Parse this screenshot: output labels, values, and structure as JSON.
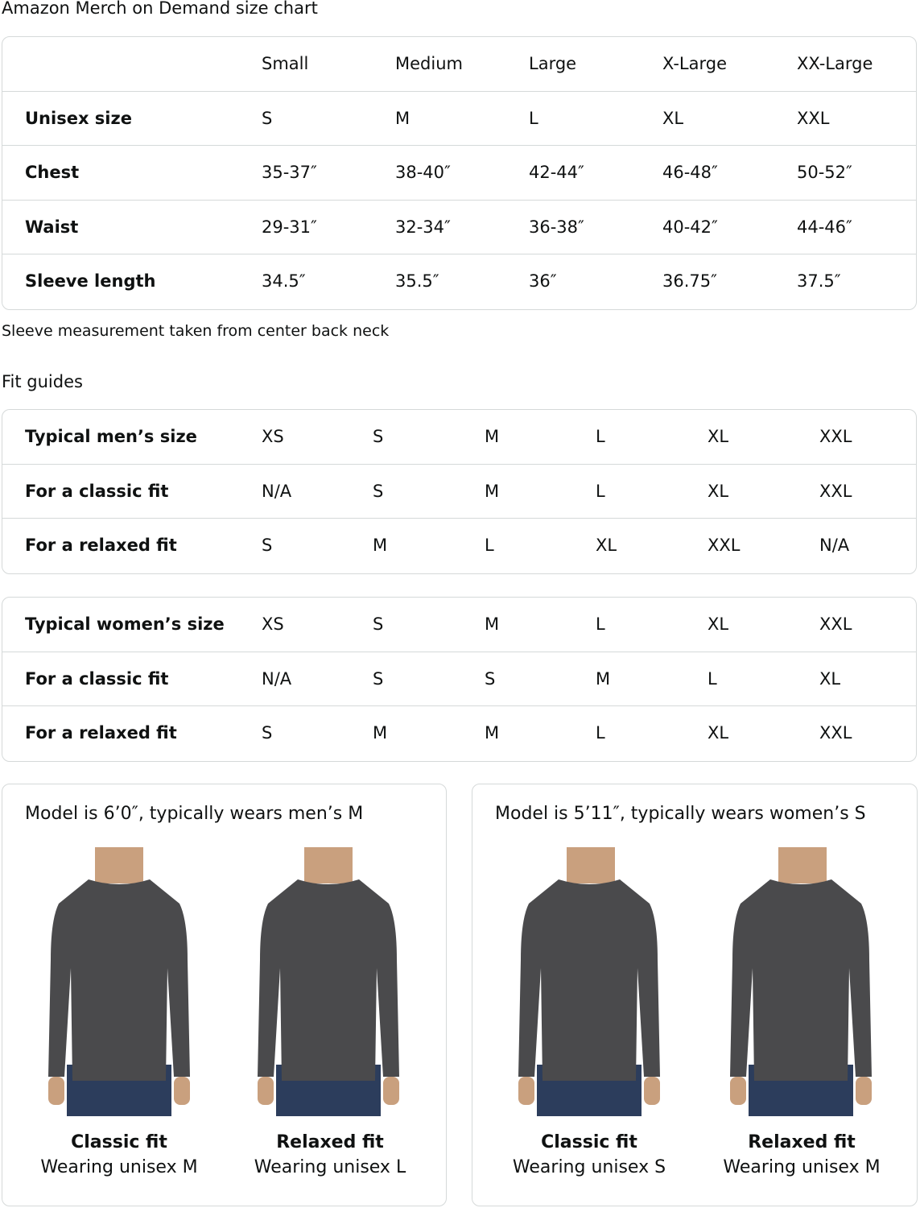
{
  "title": "Amazon Merch on Demand size chart",
  "size_chart": {
    "headers": [
      "",
      "Small",
      "Medium",
      "Large",
      "X-Large",
      "XX-Large"
    ],
    "rows": [
      [
        "Unisex size",
        "S",
        "M",
        "L",
        "XL",
        "XXL"
      ],
      [
        "Chest",
        "35-37″",
        "38-40″",
        "42-44″",
        "46-48″",
        "50-52″"
      ],
      [
        "Waist",
        "29-31″",
        "32-34″",
        "36-38″",
        "40-42″",
        "44-46″"
      ],
      [
        "Sleeve length",
        "34.5″",
        "35.5″",
        "36″",
        "36.75″",
        "37.5″"
      ]
    ]
  },
  "note": "Sleeve measurement taken from center back neck",
  "fit_guides_title": "Fit guides",
  "mens_fit": [
    [
      "Typical men’s size",
      "XS",
      "S",
      "M",
      "L",
      "XL",
      "XXL"
    ],
    [
      "For a classic fit",
      "N/A",
      "S",
      "M",
      "L",
      "XL",
      "XXL"
    ],
    [
      "For a relaxed fit",
      "S",
      "M",
      "L",
      "XL",
      "XXL",
      "N/A"
    ]
  ],
  "womens_fit": [
    [
      "Typical women’s size",
      "XS",
      "S",
      "M",
      "L",
      "XL",
      "XXL"
    ],
    [
      "For a classic fit",
      "N/A",
      "S",
      "S",
      "M",
      "L",
      "XL"
    ],
    [
      "For a relaxed fit",
      "S",
      "M",
      "M",
      "L",
      "XL",
      "XXL"
    ]
  ],
  "models": [
    {
      "heading": "Model is 6’0″, typically wears men’s M",
      "fits": [
        {
          "title": "Classic fit",
          "subtitle": "Wearing unisex M"
        },
        {
          "title": "Relaxed fit",
          "subtitle": "Wearing unisex L"
        }
      ]
    },
    {
      "heading": "Model is 5’11″, typically wears women’s S",
      "fits": [
        {
          "title": "Classic fit",
          "subtitle": "Wearing unisex S"
        },
        {
          "title": "Relaxed fit",
          "subtitle": "Wearing unisex M"
        }
      ]
    }
  ],
  "colors": {
    "shirt": "#4a4a4c",
    "jeans": "#2c3d5c",
    "skin": "#c9a07e",
    "border": "#d5d9d9"
  }
}
